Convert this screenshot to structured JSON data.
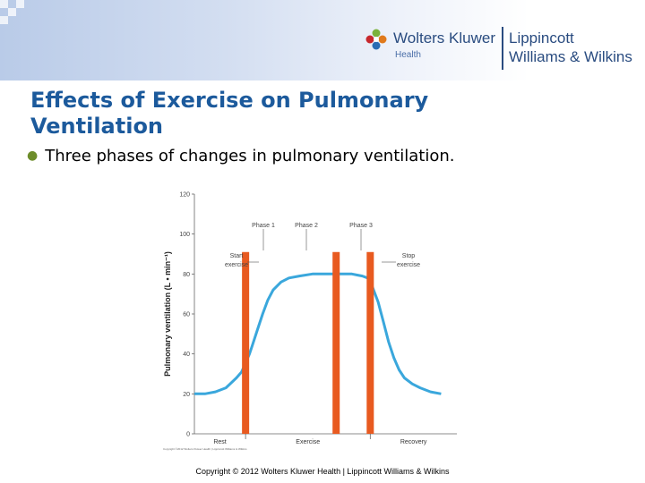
{
  "brand": {
    "company": "Wolters Kluwer",
    "division": "Health",
    "publisher_line1": "Lippincott",
    "publisher_line2": "Williams & Wilkins"
  },
  "slide": {
    "title": "Effects of Exercise on Pulmonary Ventilation",
    "bullet": "Three phases of changes in pulmonary ventilation."
  },
  "chart_data": {
    "type": "line",
    "title": "",
    "ylabel": "Pulmonary ventilation (L • min⁻¹)",
    "xlabel": "",
    "ylim": [
      0,
      120
    ],
    "yticks": [
      0,
      20,
      40,
      60,
      80,
      100,
      120
    ],
    "xlim": [
      0,
      100
    ],
    "grid": false,
    "x_regions": [
      "Rest",
      "Exercise",
      "Recovery"
    ],
    "series": [
      {
        "color": "#3aa7dc",
        "x": [
          0,
          4,
          8,
          12,
          16,
          18,
          19,
          20,
          21,
          22,
          24,
          26,
          28,
          30,
          33,
          36,
          40,
          45,
          50,
          55,
          60,
          62,
          64,
          66,
          67,
          68,
          70,
          72,
          74,
          76,
          78,
          80,
          83,
          86,
          90,
          94
        ],
        "y": [
          20,
          20,
          21,
          23,
          28,
          31,
          34,
          37,
          40,
          44,
          52,
          60,
          67,
          72,
          76,
          78,
          79,
          80,
          80,
          80,
          80,
          79.5,
          79,
          78,
          76,
          73,
          66,
          56,
          46,
          38,
          32,
          28,
          25,
          23,
          21,
          20
        ]
      }
    ],
    "markers": [
      {
        "x": 19.5,
        "color": "#e85a20"
      },
      {
        "x": 54,
        "color": "#e85a20"
      },
      {
        "x": 67,
        "color": "#e85a20"
      }
    ],
    "annotations": {
      "start_exercise": "Start exercise",
      "stop_exercise": "Stop exercise",
      "phase1": "Phase 1",
      "phase2": "Phase 2",
      "phase3": "Phase 3",
      "chart_copyright": "Copyright ©2012 Wolters Kluwer Health | Lippincott Williams & Wilkins"
    }
  },
  "footer": {
    "copyright": "Copyright © 2012 Wolters Kluwer Health | Lippincott Williams & Wilkins"
  }
}
